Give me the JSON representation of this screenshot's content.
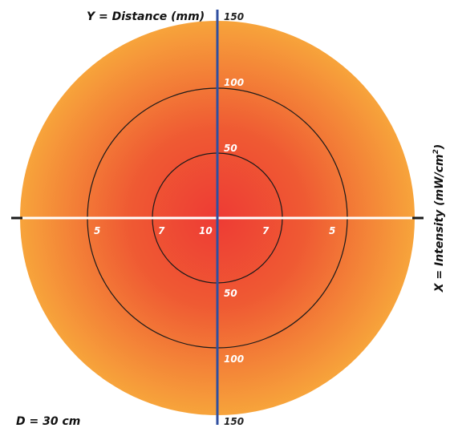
{
  "labels": {
    "y_axis_title": "Y = Distance (mm)",
    "x_axis_title_main": "X = Intensity (mW/cm",
    "x_axis_title_sup": "2",
    "x_axis_title_close": ")",
    "footer": "D = 30 cm"
  },
  "distance_labels": {
    "top_150": "150",
    "top_100": "100",
    "top_50": "50",
    "bottom_50": "50",
    "bottom_100": "100",
    "bottom_150": "150"
  },
  "intensity_labels": {
    "left_5": "5",
    "left_7": "7",
    "center_10": "10",
    "right_7": "7",
    "right_5": "5"
  },
  "colors": {
    "center": "#ee3b34",
    "mid": "#ef5a33",
    "edge": "#f7a43b",
    "vertical_axis": "#2f4fa0",
    "horizontal_axis": "#ffffff",
    "ring_stroke": "#1a1a1a"
  }
}
